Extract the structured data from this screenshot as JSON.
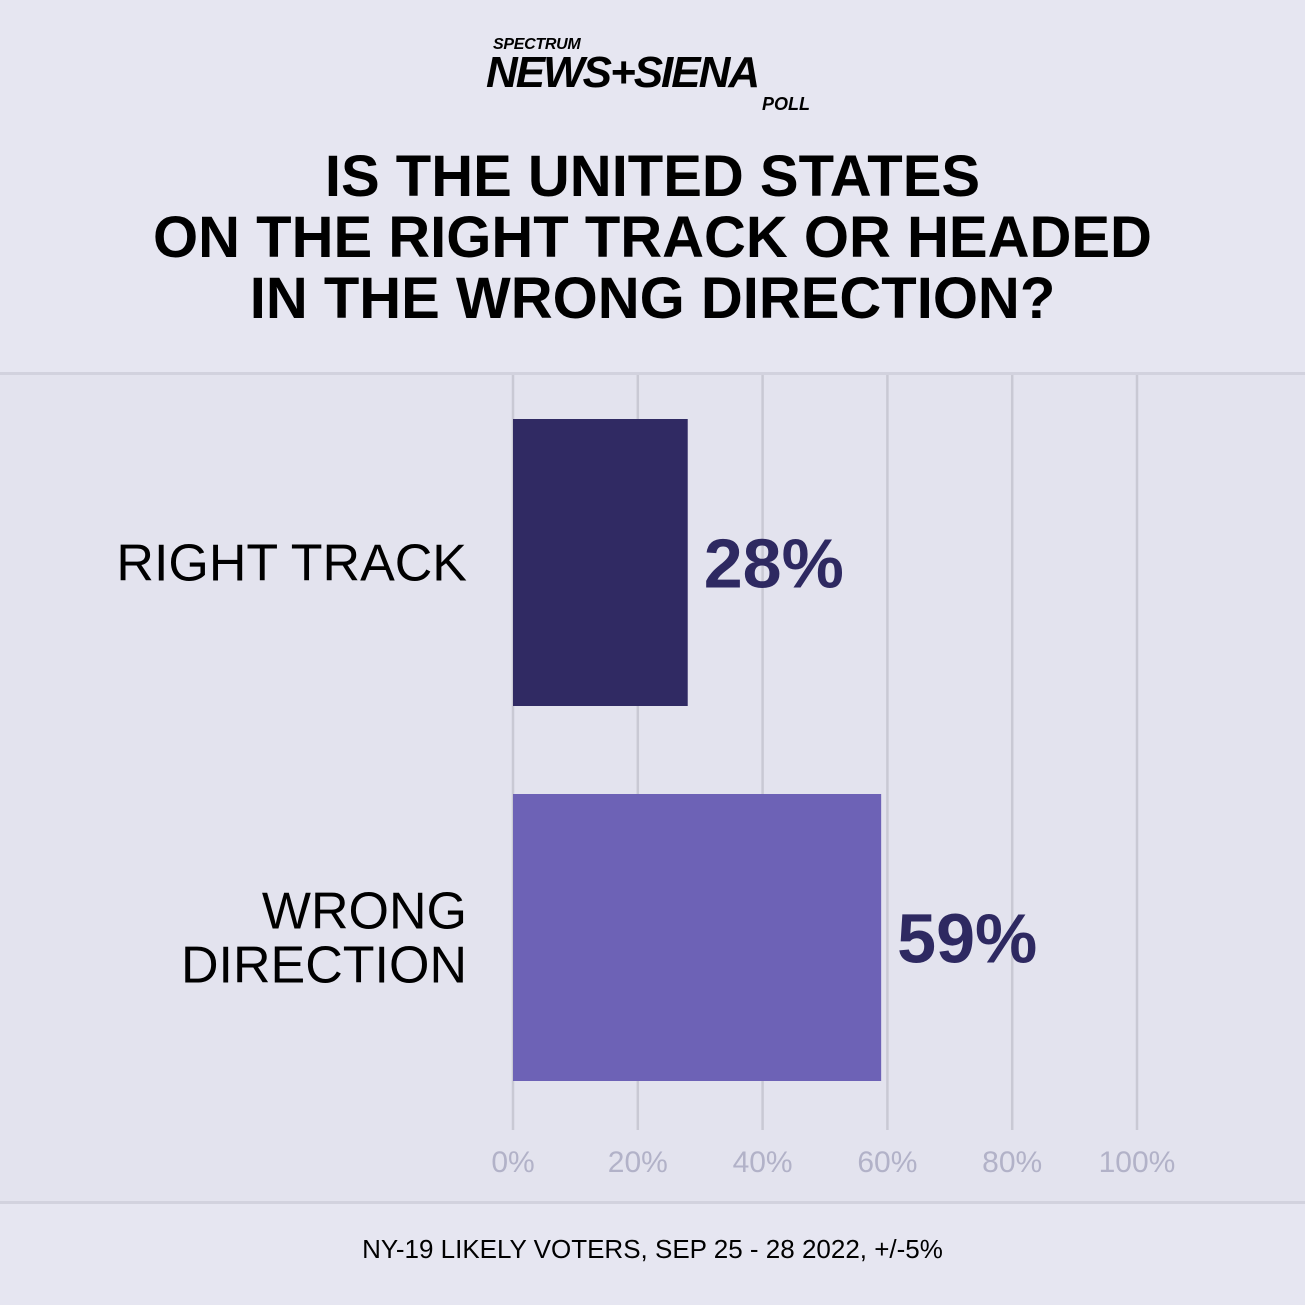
{
  "logo": {
    "spectrum": "SPECTRUM",
    "main": "NEWS+SIENA",
    "poll": "POLL"
  },
  "title": {
    "line1": "IS THE UNITED STATES",
    "line2": "ON THE RIGHT TRACK OR HEADED",
    "line3": "IN THE WRONG DIRECTION?"
  },
  "footer": "NY-19 LIKELY VOTERS, SEP 25 - 28 2022, +/-5%",
  "chart_data": {
    "type": "bar",
    "orientation": "horizontal",
    "categories": [
      [
        "RIGHT TRACK"
      ],
      [
        "WRONG",
        "DIRECTION"
      ]
    ],
    "values": [
      28,
      59
    ],
    "value_labels": [
      "28%",
      "59%"
    ],
    "colors": [
      "#302a63",
      "#6d62b6"
    ],
    "xlim": [
      0,
      100
    ],
    "xticks": [
      0,
      20,
      40,
      60,
      80,
      100
    ],
    "xtick_labels": [
      "0%",
      "20%",
      "40%",
      "60%",
      "80%",
      "100%"
    ],
    "grid": true,
    "title": "IS THE UNITED STATES ON THE RIGHT TRACK OR HEADED IN THE WRONG DIRECTION?"
  }
}
